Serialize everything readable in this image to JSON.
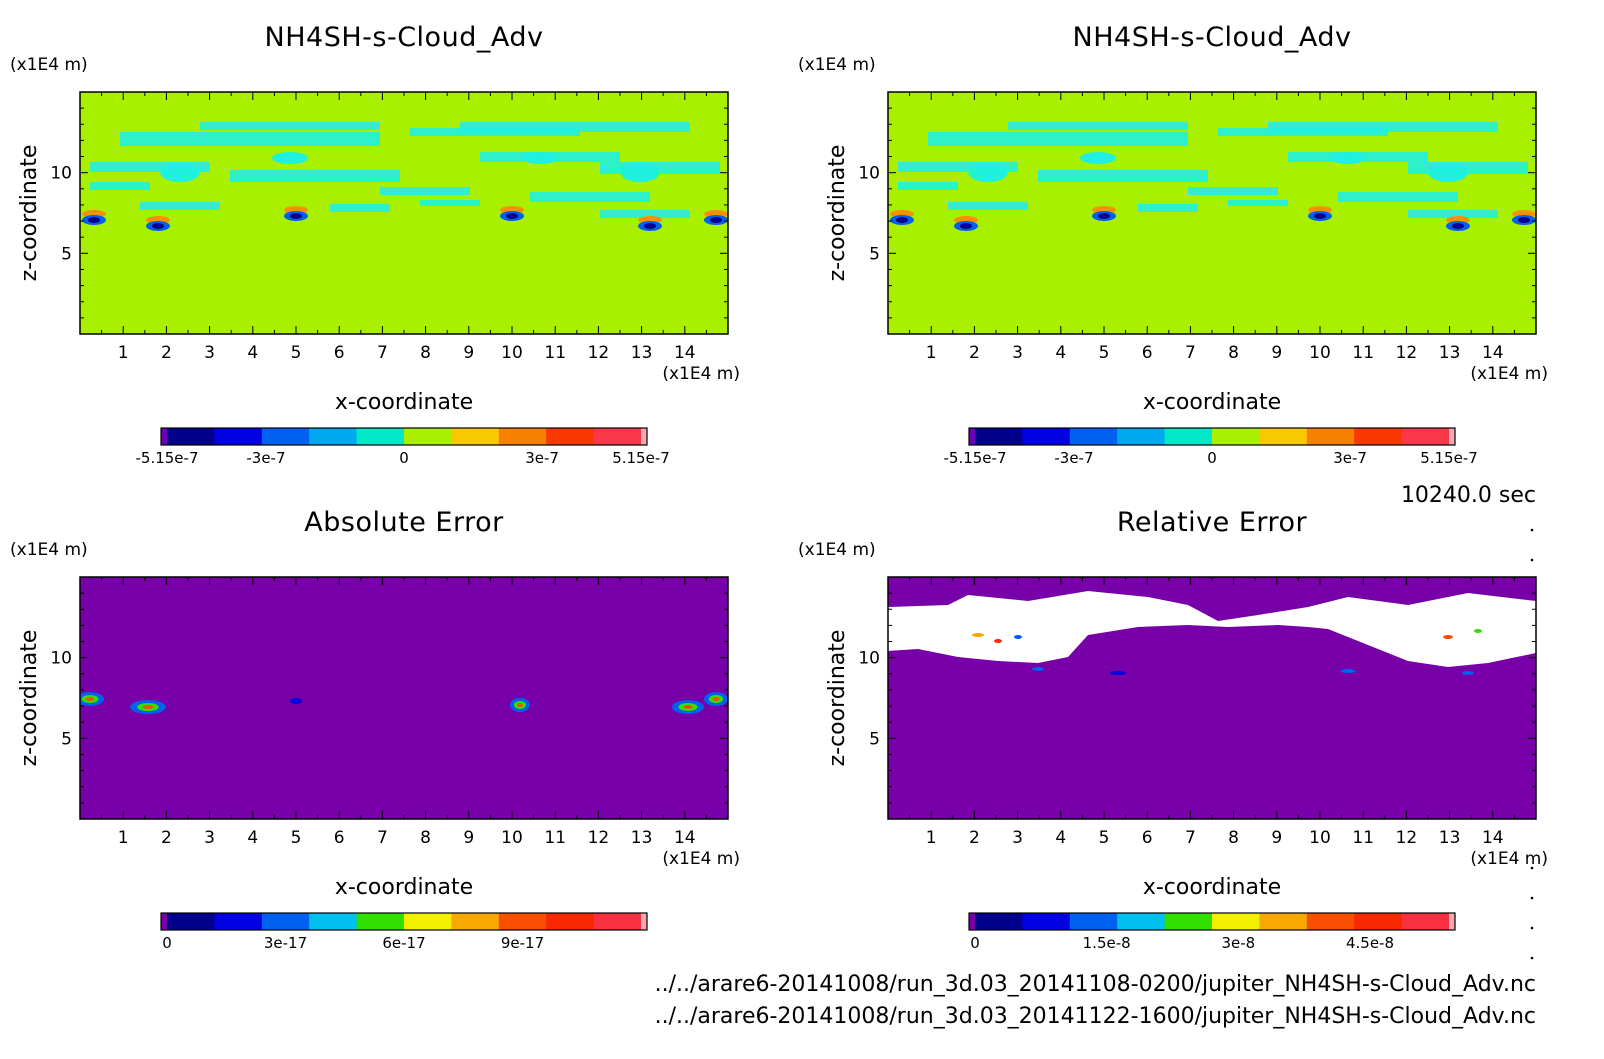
{
  "figure": {
    "time_label": "10240.0 sec",
    "file_paths": [
      "../../arare6-20141008/run_3d.03_20141108-0200/jupiter_NH4SH-s-Cloud_Adv.nc",
      "../../arare6-20141008/run_3d.03_20141122-1600/jupiter_NH4SH-s-Cloud_Adv.nc"
    ]
  },
  "chart_data": [
    {
      "type": "heatmap",
      "title": "NH4SH-s-Cloud_Adv",
      "xlabel": "x-coordinate",
      "ylabel": "z-coordinate",
      "x_unit": "(x1E4 m)",
      "y_unit": "(x1E4 m)",
      "xlim": [
        0,
        15
      ],
      "ylim": [
        0,
        15
      ],
      "xticks": [
        1,
        2,
        3,
        4,
        5,
        6,
        7,
        8,
        9,
        10,
        11,
        12,
        13,
        14
      ],
      "yticks": [
        5,
        10
      ],
      "background_level": "0",
      "colorbar": {
        "colors": [
          "#6a00b8",
          "#00008c",
          "#0000e0",
          "#0060f0",
          "#00a8f0",
          "#00e8c8",
          "#a8f000",
          "#f8c800",
          "#f88000",
          "#f83800",
          "#f83848",
          "#f8a8b0"
        ],
        "tick_labels": [
          "-5.15e-7",
          "-3e-7",
          "0",
          "3e-7",
          "5.15e-7"
        ],
        "tick_values": [
          -5.15e-07,
          -3e-07,
          0,
          3e-07,
          5.15e-07
        ],
        "range": [
          -5.15e-07,
          5.15e-07
        ]
      }
    },
    {
      "type": "heatmap",
      "title": "NH4SH-s-Cloud_Adv",
      "xlabel": "x-coordinate",
      "ylabel": "z-coordinate",
      "x_unit": "(x1E4 m)",
      "y_unit": "(x1E4 m)",
      "xlim": [
        0,
        15
      ],
      "ylim": [
        0,
        15
      ],
      "xticks": [
        1,
        2,
        3,
        4,
        5,
        6,
        7,
        8,
        9,
        10,
        11,
        12,
        13,
        14
      ],
      "yticks": [
        5,
        10
      ],
      "background_level": "0",
      "colorbar": {
        "colors": [
          "#6a00b8",
          "#00008c",
          "#0000e0",
          "#0060f0",
          "#00a8f0",
          "#00e8c8",
          "#a8f000",
          "#f8c800",
          "#f88000",
          "#f83800",
          "#f83848",
          "#f8a8b0"
        ],
        "tick_labels": [
          "-5.15e-7",
          "-3e-7",
          "0",
          "3e-7",
          "5.15e-7"
        ],
        "tick_values": [
          -5.15e-07,
          -3e-07,
          0,
          3e-07,
          5.15e-07
        ],
        "range": [
          -5.15e-07,
          5.15e-07
        ]
      }
    },
    {
      "type": "heatmap",
      "title": "Absolute Error",
      "xlabel": "x-coordinate",
      "ylabel": "z-coordinate",
      "x_unit": "(x1E4 m)",
      "y_unit": "(x1E4 m)",
      "xlim": [
        0,
        15
      ],
      "ylim": [
        0,
        15
      ],
      "xticks": [
        1,
        2,
        3,
        4,
        5,
        6,
        7,
        8,
        9,
        10,
        11,
        12,
        13,
        14
      ],
      "yticks": [
        5,
        10
      ],
      "background_level": "0",
      "colorbar": {
        "colors": [
          "#7800a8",
          "#00008c",
          "#0000e0",
          "#0060f0",
          "#00c0f0",
          "#30e000",
          "#f0f000",
          "#f8a800",
          "#f85000",
          "#f82800",
          "#f83040",
          "#f8a8b0"
        ],
        "tick_labels": [
          "0",
          "3e-17",
          "6e-17",
          "9e-17"
        ],
        "tick_values": [
          0,
          3e-17,
          6e-17,
          9e-17
        ],
        "range": [
          0,
          1.2e-16
        ]
      }
    },
    {
      "type": "heatmap",
      "title": "Relative Error",
      "xlabel": "x-coordinate",
      "ylabel": "z-coordinate",
      "x_unit": "(x1E4 m)",
      "y_unit": "(x1E4 m)",
      "xlim": [
        0,
        15
      ],
      "ylim": [
        0,
        15
      ],
      "xticks": [
        1,
        2,
        3,
        4,
        5,
        6,
        7,
        8,
        9,
        10,
        11,
        12,
        13,
        14
      ],
      "yticks": [
        5,
        10
      ],
      "background_level": "0",
      "colorbar": {
        "colors": [
          "#7800a8",
          "#00008c",
          "#0000e0",
          "#0060f0",
          "#00c0f0",
          "#30e000",
          "#f0f000",
          "#f8a800",
          "#f85000",
          "#f82800",
          "#f83040",
          "#f8a8b0"
        ],
        "tick_labels": [
          "0",
          "1.5e-8",
          "3e-8",
          "4.5e-8"
        ],
        "tick_values": [
          0,
          1.5e-08,
          3e-08,
          4.5e-08
        ],
        "range": [
          0,
          5.4e-08
        ]
      }
    }
  ]
}
